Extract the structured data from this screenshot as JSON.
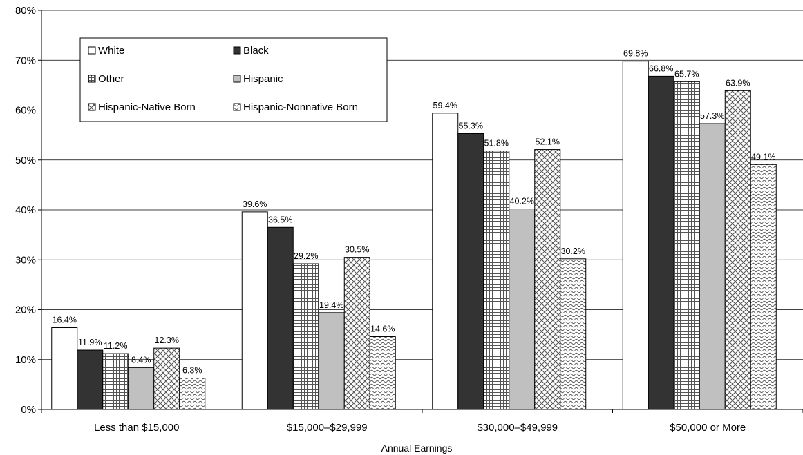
{
  "chart_data": {
    "type": "bar",
    "categories": [
      "Less than $15,000",
      "$15,000–$29,999",
      "$30,000–$49,999",
      "$50,000 or More"
    ],
    "series": [
      {
        "name": "White",
        "values": [
          16.4,
          39.6,
          59.4,
          69.8
        ],
        "pattern": "white"
      },
      {
        "name": "Black",
        "values": [
          11.9,
          36.5,
          55.3,
          66.8
        ],
        "pattern": "black"
      },
      {
        "name": "Other",
        "values": [
          11.2,
          29.2,
          51.8,
          65.7
        ],
        "pattern": "grid"
      },
      {
        "name": "Hispanic",
        "values": [
          8.4,
          19.4,
          40.2,
          57.3
        ],
        "pattern": "gray"
      },
      {
        "name": "Hispanic-Native Born",
        "values": [
          12.3,
          30.5,
          52.1,
          63.9
        ],
        "pattern": "diamond"
      },
      {
        "name": "Hispanic-Nonnative Born",
        "values": [
          6.3,
          14.6,
          30.2,
          49.1
        ],
        "pattern": "wave"
      }
    ],
    "data_labels": [
      [
        "16.4%",
        "39.6%",
        "59.4%",
        "69.8%"
      ],
      [
        "11.9%",
        "36.5%",
        "55.3%",
        "66.8%"
      ],
      [
        "11.2%",
        "29.2%",
        "51.8%",
        "65.7%"
      ],
      [
        "8.4%",
        "19.4%",
        "40.2%",
        "57.3%"
      ],
      [
        "12.3%",
        "30.5%",
        "52.1%",
        "63.9%"
      ],
      [
        "6.3%",
        "14.6%",
        "30.2%",
        "49.1%"
      ]
    ],
    "xlabel": "Annual Earnings",
    "ylabel": "",
    "ylim": [
      0,
      80
    ],
    "yticks": [
      0,
      10,
      20,
      30,
      40,
      50,
      60,
      70,
      80
    ],
    "ytick_labels": [
      "0%",
      "10%",
      "20%",
      "30%",
      "40%",
      "50%",
      "60%",
      "70%",
      "80%"
    ],
    "grid": true,
    "legend_position": "top-left inside plot",
    "colors": {
      "white": "#ffffff",
      "black": "#333333",
      "gray": "#c0c0c0",
      "outline": "#000000"
    }
  }
}
